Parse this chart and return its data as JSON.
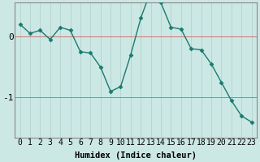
{
  "x": [
    0,
    1,
    2,
    3,
    4,
    5,
    6,
    7,
    8,
    9,
    10,
    11,
    12,
    13,
    14,
    15,
    16,
    17,
    18,
    19,
    20,
    21,
    22,
    23
  ],
  "y": [
    0.2,
    0.05,
    0.1,
    -0.05,
    0.15,
    0.1,
    -0.25,
    -0.27,
    -0.5,
    -0.9,
    -0.82,
    -0.3,
    0.3,
    0.75,
    0.55,
    0.15,
    0.12,
    -0.2,
    -0.22,
    -0.45,
    -0.75,
    -1.05,
    -1.3,
    -1.4
  ],
  "line_color": "#1a7a6e",
  "marker": "D",
  "marker_size": 2.5,
  "bg_color": "#cce8e5",
  "grid_color": "#b0cec9",
  "xlabel": "Humidex (Indice chaleur)",
  "yticks": [
    0,
    -1
  ],
  "ytick_labels": [
    "0",
    "-1"
  ],
  "ylim": [
    -1.65,
    0.55
  ],
  "xlim": [
    -0.5,
    23.5
  ],
  "xlabel_fontsize": 7.5,
  "tick_fontsize": 7,
  "line_width": 1.0,
  "hline_color": "#d07070",
  "hline_lw": 0.7,
  "spine_color": "#888888"
}
